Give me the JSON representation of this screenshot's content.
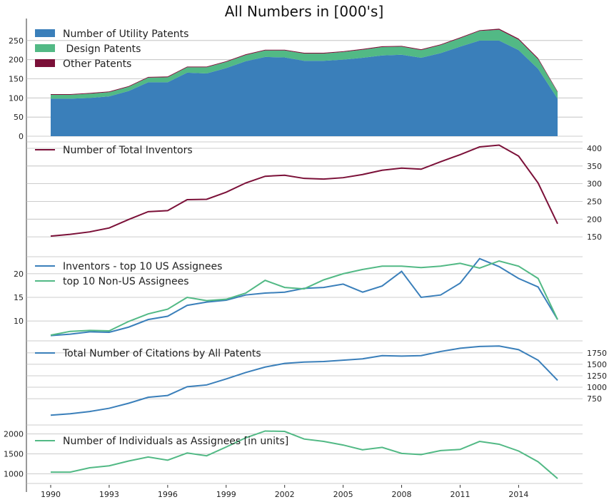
{
  "chart_data": {
    "type": "multi-panel",
    "title": "All Numbers in [000's]",
    "x": [
      1990,
      1991,
      1992,
      1993,
      1994,
      1995,
      1996,
      1997,
      1998,
      1999,
      2000,
      2001,
      2002,
      2003,
      2004,
      2005,
      2006,
      2007,
      2008,
      2009,
      2010,
      2011,
      2012,
      2013,
      2014,
      2015,
      2016
    ],
    "x_ticks": [
      1990,
      1993,
      1996,
      1999,
      2002,
      2005,
      2008,
      2011,
      2014
    ],
    "colors": {
      "utility": "#3a7fba",
      "design": "#52b985",
      "other": "#7b1038",
      "inventors": "#7b1038",
      "us": "#3a7fba",
      "nonus": "#52b985",
      "citations": "#3a7fba",
      "individuals": "#52b985",
      "grid": "#bbbbbb"
    },
    "panels": [
      {
        "type": "area",
        "stacked": true,
        "ylim": [
          0,
          300
        ],
        "yticks": [
          0,
          50,
          100,
          150,
          200,
          250
        ],
        "tick_side": "left",
        "series": [
          {
            "name": "Number of Utility Patents",
            "values": [
              98,
              98,
              100,
              104,
              118,
              141,
              141,
              166,
              164,
              178,
              196,
              207,
              206,
              197,
              197,
              200,
              205,
              211,
              213,
              205,
              217,
              234,
              250,
              250,
              225,
              176,
              98
            ]
          },
          {
            "name": " Design Patents",
            "values": [
              10,
              10,
              11,
              11,
              11,
              12,
              13,
              14,
              16,
              16,
              16,
              17,
              18,
              19,
              19,
              20,
              21,
              22,
              21,
              20,
              21,
              22,
              25,
              28,
              27,
              25,
              17
            ]
          },
          {
            "name": "Other Patents",
            "values": [
              2,
              2,
              2,
              2,
              2,
              2,
              2,
              2,
              2,
              2,
              2,
              2,
              2,
              2,
              2,
              2,
              2,
              2,
              2,
              2,
              2,
              2,
              2,
              3,
              3,
              3,
              2
            ]
          }
        ]
      },
      {
        "type": "line",
        "ylim": [
          110,
          410
        ],
        "yticks": [
          150,
          200,
          250,
          300,
          350,
          400
        ],
        "tick_side": "right",
        "series": [
          {
            "name": "Number of Total Inventors",
            "values": [
              152,
              157,
              164,
              175,
              199,
              221,
              224,
              255,
              256,
              276,
              302,
              321,
              324,
              315,
              313,
              317,
              326,
              338,
              344,
              341,
              362,
              382,
              404,
              409,
              378,
              302,
              187
            ]
          }
        ]
      },
      {
        "type": "line",
        "ylim": [
          7,
          23
        ],
        "yticks": [
          10,
          15,
          20
        ],
        "tick_side": "left",
        "series": [
          {
            "name": "Inventors - top 10 US Assignees",
            "values": [
              6.9,
              7.2,
              7.7,
              7.6,
              8.7,
              10.3,
              11.0,
              13.3,
              14.0,
              14.4,
              15.5,
              15.9,
              16.1,
              16.9,
              17.1,
              17.8,
              16.1,
              17.4,
              20.5,
              15.0,
              15.5,
              18.0,
              23.2,
              21.5,
              19.0,
              17.2,
              10.3
            ]
          },
          {
            "name": "top 10 Non-US Assignees",
            "values": [
              7.0,
              7.8,
              8.0,
              7.9,
              9.9,
              11.5,
              12.5,
              15.0,
              14.3,
              14.6,
              15.9,
              18.6,
              17.1,
              16.8,
              18.7,
              20.0,
              20.9,
              21.6,
              21.6,
              21.3,
              21.6,
              22.2,
              21.2,
              22.7,
              21.6,
              19.0,
              10.3
            ]
          }
        ]
      },
      {
        "type": "line",
        "ylim": [
          300,
          1950
        ],
        "yticks": [
          750,
          1000,
          1250,
          1500,
          1750
        ],
        "tick_side": "right",
        "series": [
          {
            "name": "Total Number of Citations by All Patents",
            "values": [
              390,
              420,
              470,
              540,
              650,
              780,
              820,
              1010,
              1050,
              1180,
              1320,
              1440,
              1520,
              1550,
              1560,
              1590,
              1620,
              1690,
              1680,
              1690,
              1780,
              1850,
              1890,
              1900,
              1820,
              1590,
              1150
            ]
          }
        ]
      },
      {
        "type": "line",
        "ylim": [
          900,
          2150
        ],
        "yticks": [
          1000,
          1500,
          2000
        ],
        "tick_side": "left",
        "series": [
          {
            "name": "Number of Individuals as Assignees [in units]",
            "values": [
              1040,
              1040,
              1150,
              1200,
              1320,
              1420,
              1340,
              1520,
              1450,
              1670,
              1900,
              2070,
              2060,
              1870,
              1810,
              1720,
              1600,
              1660,
              1510,
              1480,
              1580,
              1610,
              1810,
              1740,
              1570,
              1300,
              880
            ]
          }
        ]
      }
    ]
  }
}
